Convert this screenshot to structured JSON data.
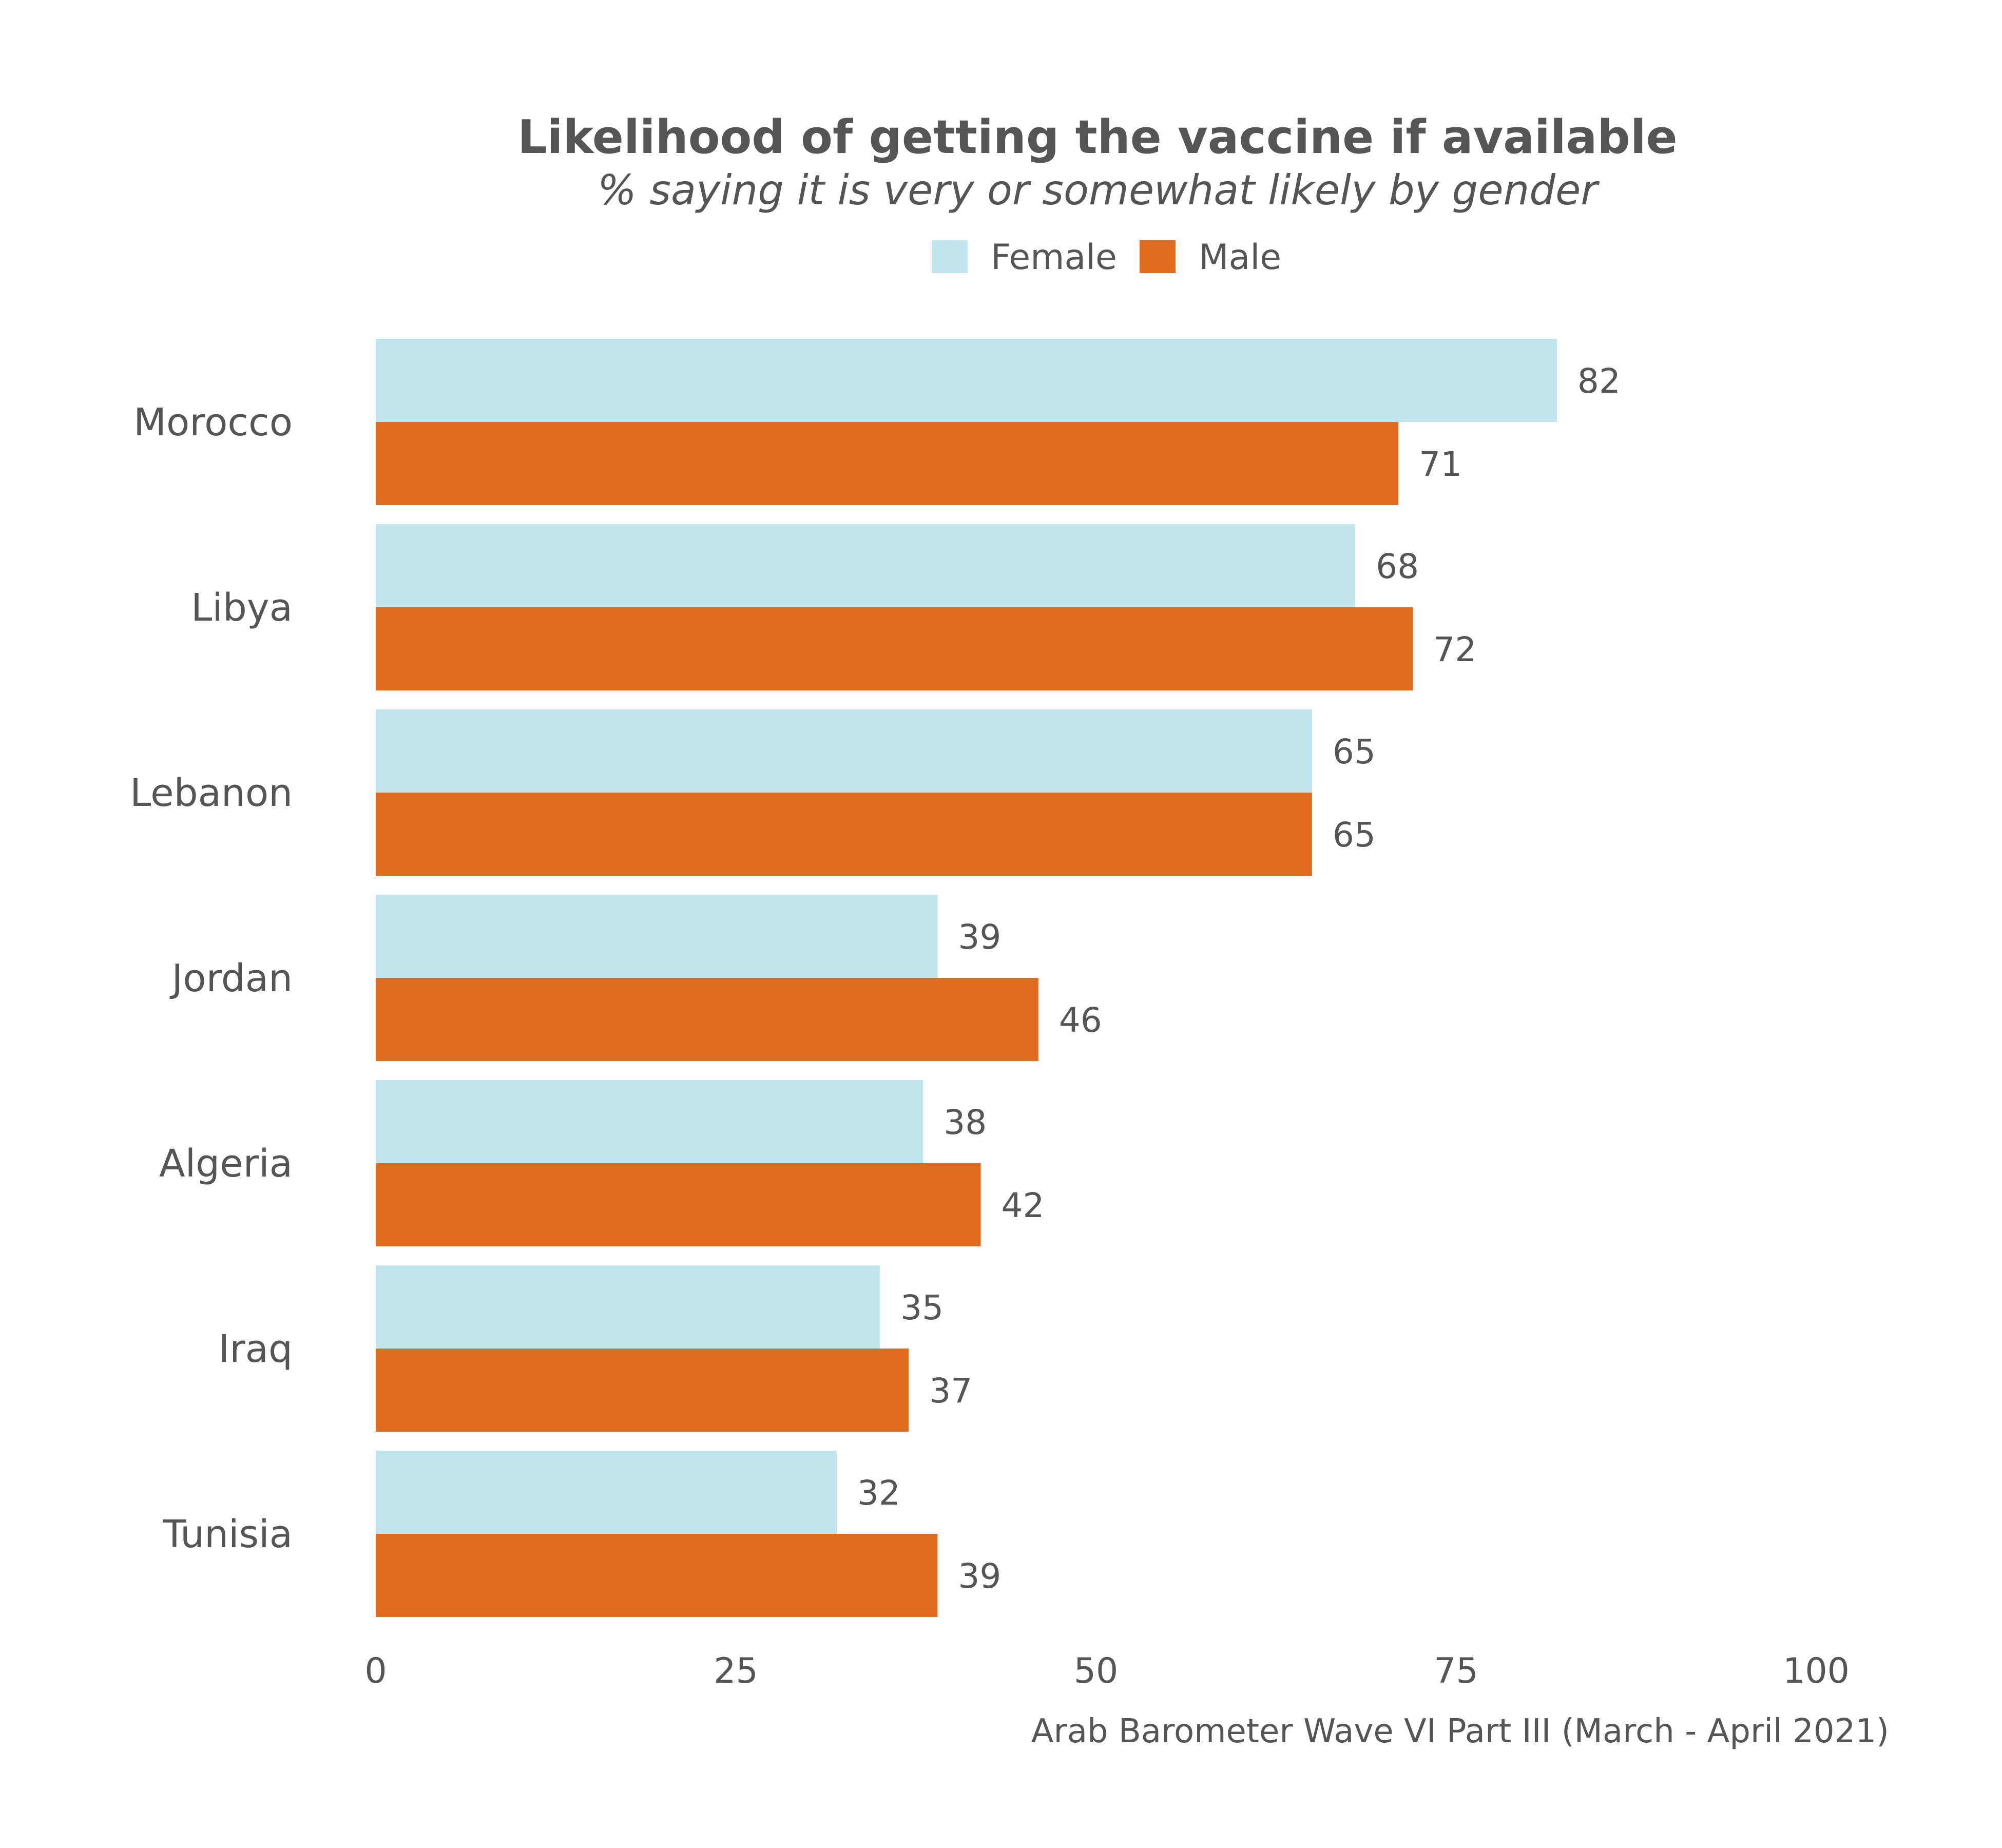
{
  "chart_data": {
    "type": "bar",
    "orientation": "horizontal",
    "title": "Likelihood of getting the vaccine if available",
    "subtitle": "% saying it is very or somewhat likely by gender",
    "caption": "Arab Barometer Wave VI Part III (March - April 2021)",
    "categories": [
      "Morocco",
      "Libya",
      "Lebanon",
      "Jordan",
      "Algeria",
      "Iraq",
      "Tunisia"
    ],
    "series": [
      {
        "name": "Female",
        "color": "#c2e4ec",
        "values": [
          82,
          68,
          65,
          39,
          38,
          35,
          32
        ]
      },
      {
        "name": "Male",
        "color": "#df6d21",
        "values": [
          71,
          72,
          65,
          46,
          42,
          37,
          39
        ]
      }
    ],
    "xlim": [
      0,
      100
    ],
    "xticks": [
      "0",
      "25",
      "50",
      "75",
      "100"
    ],
    "xlabel": "",
    "ylabel": "",
    "grid": false,
    "legend_position": "top-center"
  }
}
